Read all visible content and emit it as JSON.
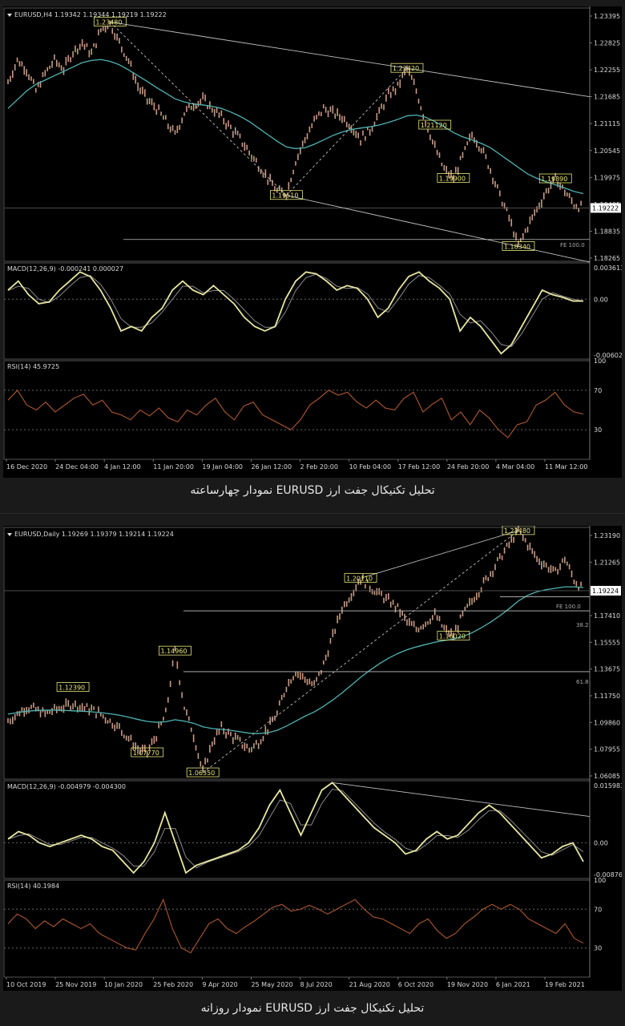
{
  "captions": {
    "h4": "تحلیل تکنیکال جفت ارز EURUSD نمودار چهارساعته",
    "daily": "تحلیل تکنیکال جفت ارز EURUSD نمودار روزانه"
  },
  "colors": {
    "background": "#000000",
    "candle": "#c79a84",
    "ma": "#4fb3b3",
    "macd_line": "#e8e6a0",
    "macd_signal": "#8a8a8a",
    "rsi": "#a0522d",
    "trendline": "#bfbfbf",
    "label_box": "#e8e878",
    "text": "#d9d9d9"
  },
  "chart_data": [
    {
      "type": "candlestick",
      "symbol_header": "EURUSD,H4  1.19342 1.19344 1.19219 1.19222",
      "price_axis_ticks": [
        "1.23395",
        "1.22825",
        "1.22255",
        "1.21685",
        "1.21115",
        "1.20545",
        "1.19975",
        "1.19405",
        "1.18835",
        "1.18265"
      ],
      "ylim": [
        1.18,
        1.238
      ],
      "current_price": "1.19222",
      "x_tick_labels": [
        "16 Dec 2020",
        "24 Dec 04:00",
        "4 Jan 12:00",
        "11 Jan 20:00",
        "19 Jan 04:00",
        "26 Jan 12:00",
        "2 Feb 20:00",
        "10 Feb 04:00",
        "17 Feb 12:00",
        "24 Feb 20:00",
        "4 Mar 04:00",
        "11 Mar 12:00"
      ],
      "close_path": [
        1.221,
        1.226,
        1.224,
        1.219,
        1.223,
        1.226,
        1.224,
        1.228,
        1.23,
        1.2275,
        1.233,
        1.2345,
        1.23,
        1.226,
        1.22,
        1.217,
        1.215,
        1.212,
        1.209,
        1.214,
        1.216,
        1.217,
        1.215,
        1.213,
        1.2105,
        1.208,
        1.205,
        1.202,
        1.199,
        1.196,
        1.1955,
        1.203,
        1.208,
        1.212,
        1.215,
        1.214,
        1.213,
        1.211,
        1.208,
        1.21,
        1.214,
        1.218,
        1.22,
        1.2242,
        1.219,
        1.212,
        1.206,
        1.201,
        1.199,
        1.204,
        1.209,
        1.206,
        1.201,
        1.195,
        1.19,
        1.1834,
        1.188,
        1.192,
        1.196,
        1.1989,
        1.196,
        1.193,
        1.1922
      ],
      "ma_path": [
        1.215,
        1.217,
        1.219,
        1.2205,
        1.2215,
        1.2225,
        1.2235,
        1.2245,
        1.2255,
        1.226,
        1.2262,
        1.2258,
        1.225,
        1.2238,
        1.2225,
        1.2212,
        1.2198,
        1.2185,
        1.2172,
        1.2165,
        1.216,
        1.2158,
        1.2155,
        1.215,
        1.2142,
        1.2132,
        1.212,
        1.2105,
        1.209,
        1.2075,
        1.2062,
        1.2058,
        1.206,
        1.2068,
        1.2078,
        1.2088,
        1.2096,
        1.2102,
        1.2105,
        1.2108,
        1.2112,
        1.2118,
        1.2125,
        1.2133,
        1.2135,
        1.213,
        1.212,
        1.2108,
        1.2095,
        1.2085,
        1.2078,
        1.207,
        1.206,
        1.2045,
        1.203,
        1.2015,
        1.2,
        1.199,
        1.1982,
        1.1975,
        1.1968,
        1.196,
        1.1955
      ],
      "price_labels": [
        {
          "text": "1.23480",
          "i": 11,
          "price": 1.2348
        },
        {
          "text": "1.22420",
          "i": 43,
          "price": 1.2242
        },
        {
          "text": "1.21120",
          "i": 46,
          "price": 1.2112
        },
        {
          "text": "1.19900",
          "i": 48,
          "price": 1.199
        },
        {
          "text": "1.19890",
          "i": 59,
          "price": 1.1989
        },
        {
          "text": "1.19510",
          "i": 30,
          "price": 1.1951
        },
        {
          "text": "1.18340",
          "i": 55,
          "price": 1.1834
        }
      ],
      "annotations": [
        "FE 100.0"
      ],
      "macd": {
        "header": "MACD(12,26,9) -0.000241 0.000027",
        "axis_ticks": [
          "0.003613",
          "0.00",
          "-0.006026"
        ],
        "ylim": [
          -0.0066,
          0.004
        ],
        "values": [
          0.001,
          0.002,
          0.0005,
          -0.0005,
          -0.0003,
          0.001,
          0.002,
          0.003,
          0.0025,
          0.001,
          -0.001,
          -0.0035,
          -0.003,
          -0.0035,
          -0.002,
          -0.001,
          0.001,
          0.002,
          0.001,
          0.0005,
          0.0015,
          0.0005,
          -0.0005,
          -0.002,
          -0.003,
          -0.0035,
          -0.003,
          0.0,
          0.002,
          0.003,
          0.0028,
          0.002,
          0.001,
          0.0015,
          0.0012,
          0.0,
          -0.002,
          -0.001,
          0.001,
          0.0025,
          0.003,
          0.002,
          0.0012,
          0.0,
          -0.0035,
          -0.002,
          -0.003,
          -0.0045,
          -0.006,
          -0.005,
          -0.003,
          -0.001,
          0.001,
          0.0005,
          0.0002,
          -0.0002,
          -0.0002
        ]
      },
      "rsi": {
        "header": "RSI(14) 45.9725",
        "axis_ticks": [
          "100",
          "70",
          "30",
          "0"
        ],
        "ylim": [
          0,
          100
        ],
        "values": [
          60,
          70,
          55,
          50,
          58,
          48,
          55,
          62,
          66,
          55,
          60,
          48,
          45,
          40,
          50,
          44,
          52,
          42,
          38,
          50,
          45,
          55,
          62,
          48,
          40,
          54,
          58,
          45,
          40,
          35,
          30,
          40,
          55,
          62,
          70,
          65,
          68,
          58,
          52,
          60,
          52,
          50,
          62,
          68,
          48,
          56,
          62,
          40,
          48,
          35,
          50,
          42,
          30,
          22,
          35,
          38,
          55,
          60,
          68,
          55,
          48,
          46
        ]
      }
    },
    {
      "type": "candlestick",
      "symbol_header": "EURUSD,Daily  1.19269 1.19379 1.19214 1.19224",
      "price_axis_ticks": [
        "1.23190",
        "1.21265",
        "1.19340",
        "1.17410",
        "1.15555",
        "1.13675",
        "1.11750",
        "1.09860",
        "1.07955",
        "1.06085"
      ],
      "ylim": [
        1.059,
        1.237
      ],
      "current_price": "1.19224",
      "x_tick_labels": [
        "10 Oct 2019",
        "25 Nov 2019",
        "10 Jan 2020",
        "25 Feb 2020",
        "9 Apr 2020",
        "25 May 2020",
        "8 Jul 2020",
        "21 Aug 2020",
        "6 Oct 2020",
        "19 Nov 2020",
        "6 Jan 2021",
        "19 Feb 2021"
      ],
      "close_path": [
        1.1,
        1.105,
        1.11,
        1.108,
        1.105,
        1.108,
        1.11,
        1.1123,
        1.11,
        1.108,
        1.105,
        1.1,
        1.095,
        1.088,
        1.08,
        1.0778,
        1.09,
        1.105,
        1.1496,
        1.11,
        1.09,
        1.0636,
        1.085,
        1.095,
        1.09,
        1.085,
        1.08,
        1.085,
        1.095,
        1.105,
        1.125,
        1.135,
        1.13,
        1.125,
        1.14,
        1.16,
        1.18,
        1.19,
        1.2011,
        1.195,
        1.19,
        1.185,
        1.18,
        1.17,
        1.165,
        1.17,
        1.175,
        1.165,
        1.1602,
        1.175,
        1.185,
        1.195,
        1.205,
        1.215,
        1.225,
        1.2348,
        1.225,
        1.215,
        1.21,
        1.205,
        1.215,
        1.2,
        1.1922
      ],
      "ma_path": [
        1.105,
        1.106,
        1.107,
        1.1075,
        1.1078,
        1.1078,
        1.1076,
        1.1073,
        1.107,
        1.1066,
        1.106,
        1.1052,
        1.1042,
        1.1028,
        1.1012,
        1.0998,
        1.0992,
        1.0996,
        1.101,
        1.1,
        1.0985,
        1.096,
        1.0948,
        1.0942,
        1.0935,
        1.0925,
        1.0915,
        1.0912,
        1.0918,
        1.0935,
        1.0965,
        1.1,
        1.1035,
        1.1065,
        1.1105,
        1.115,
        1.12,
        1.1255,
        1.131,
        1.136,
        1.1405,
        1.1445,
        1.1478,
        1.1505,
        1.1525,
        1.1542,
        1.1558,
        1.157,
        1.158,
        1.1598,
        1.1625,
        1.166,
        1.17,
        1.1745,
        1.1795,
        1.185,
        1.189,
        1.1915,
        1.193,
        1.194,
        1.195,
        1.195,
        1.1945
      ],
      "price_labels": [
        {
          "text": "1.12390",
          "i": 7,
          "price": 1.1239
        },
        {
          "text": "1.07770",
          "i": 15,
          "price": 1.0777
        },
        {
          "text": "1.14960",
          "i": 18,
          "price": 1.1496
        },
        {
          "text": "1.06350",
          "i": 21,
          "price": 1.0635
        },
        {
          "text": "1.20110",
          "i": 38,
          "price": 1.2011
        },
        {
          "text": "1.16020",
          "i": 48,
          "price": 1.1602
        },
        {
          "text": "1.23480",
          "i": 55,
          "price": 1.2348
        }
      ],
      "annotations": [
        "FE 100.0",
        "38.2",
        "61.8"
      ],
      "macd": {
        "header": "MACD(12,26,9) -0.004979 -0.004300",
        "axis_ticks": [
          "0.015983",
          "0.00",
          "-0.008762"
        ],
        "ylim": [
          -0.0095,
          0.0165
        ],
        "values": [
          0.001,
          0.003,
          0.002,
          0.0,
          -0.001,
          0.0,
          0.001,
          0.002,
          0.001,
          -0.001,
          -0.002,
          -0.005,
          -0.008,
          -0.005,
          0.0,
          0.008,
          0.0,
          -0.008,
          -0.006,
          -0.005,
          -0.004,
          -0.003,
          -0.002,
          0.0,
          0.004,
          0.01,
          0.014,
          0.008,
          0.002,
          0.008,
          0.014,
          0.016,
          0.013,
          0.01,
          0.007,
          0.004,
          0.002,
          0.0,
          -0.003,
          -0.002,
          0.001,
          0.003,
          0.001,
          0.002,
          0.005,
          0.008,
          0.01,
          0.008,
          0.005,
          0.002,
          -0.001,
          -0.004,
          -0.003,
          -0.001,
          0.0,
          -0.005
        ]
      },
      "rsi": {
        "header": "RSI(14) 40.1984",
        "axis_ticks": [
          "100",
          "70",
          "30",
          "0"
        ],
        "ylim": [
          0,
          100
        ],
        "values": [
          55,
          65,
          60,
          50,
          58,
          52,
          60,
          55,
          50,
          55,
          45,
          40,
          35,
          30,
          28,
          45,
          60,
          80,
          50,
          30,
          25,
          40,
          55,
          60,
          50,
          45,
          52,
          58,
          65,
          72,
          75,
          68,
          70,
          74,
          70,
          65,
          70,
          75,
          80,
          70,
          62,
          60,
          55,
          50,
          45,
          55,
          60,
          48,
          40,
          45,
          55,
          62,
          70,
          75,
          70,
          75,
          70,
          60,
          55,
          50,
          45,
          55,
          40,
          35
        ]
      }
    }
  ]
}
